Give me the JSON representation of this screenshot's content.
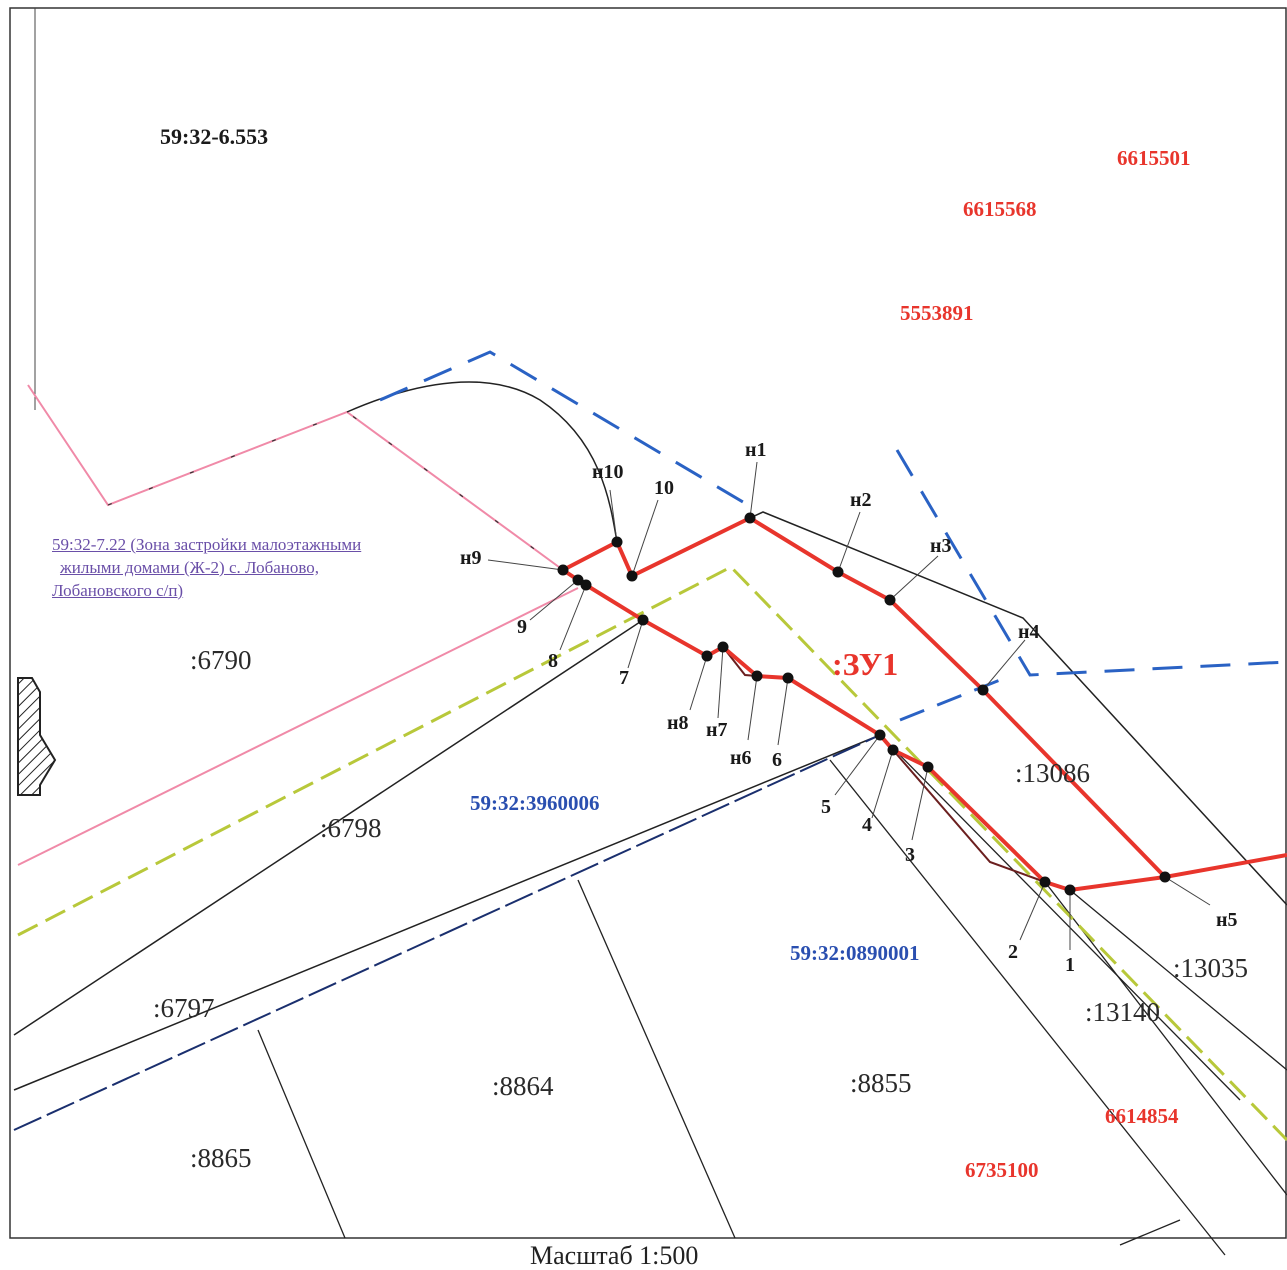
{
  "zone_code": "59:32-6.553",
  "red_numbers": [
    "6615501",
    "6615568",
    "5553891",
    "6614854",
    "6735100"
  ],
  "zone_note": {
    "line1": "59:32-7.22 (Зона застройки малоэтажными",
    "line2": "жилыми домами (Ж-2) с. Лобаново,",
    "line3": "Лобановского с/п)"
  },
  "blocks": [
    "59:32:3960006",
    "59:32:0890001"
  ],
  "parcels": [
    ":6790",
    ":6798",
    ":6797",
    ":8864",
    ":8865",
    ":8855",
    ":13086",
    ":13035",
    ":13140"
  ],
  "new_parcel": ":ЗУ1",
  "new_points": [
    "н1",
    "н2",
    "н3",
    "н4",
    "н5",
    "н6",
    "н7",
    "н8",
    "н9",
    "н10"
  ],
  "old_points": [
    "1",
    "2",
    "3",
    "4",
    "5",
    "6",
    "7",
    "8",
    "9",
    "10"
  ],
  "scale_label": "Масштаб 1:500",
  "colors": {
    "new_boundary": "#e8352c",
    "zone_boundary": "#2a62c4",
    "pink_zone": "#f08aa8",
    "yellow_line": "#b8c83a",
    "black_line": "#222222"
  }
}
